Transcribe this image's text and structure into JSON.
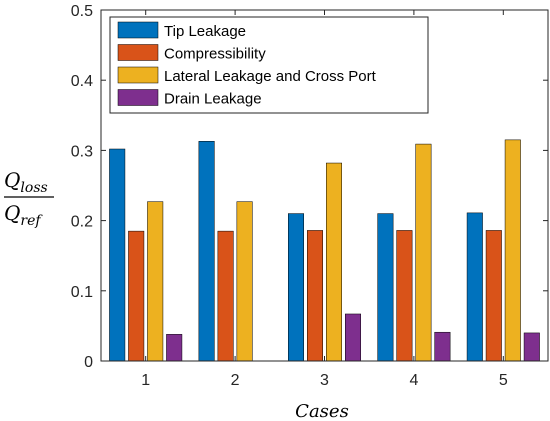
{
  "chart_data": {
    "type": "bar",
    "title": "",
    "xlabel": "Cases",
    "ylabel": {
      "numerator": "Q",
      "numerator_sub": "loss",
      "denominator": "Q",
      "denominator_sub": "ref"
    },
    "categories": [
      "1",
      "2",
      "3",
      "4",
      "5"
    ],
    "ylim": [
      0,
      0.5
    ],
    "yticks": [
      "0",
      "0.1",
      "0.2",
      "0.3",
      "0.4",
      "0.5"
    ],
    "grid": false,
    "legend_position": "top-left",
    "series": [
      {
        "name": "Tip Leakage",
        "color": "#0072BD",
        "values": [
          0.302,
          0.313,
          0.21,
          0.21,
          0.211
        ]
      },
      {
        "name": "Compressibility",
        "color": "#D95319",
        "values": [
          0.185,
          0.185,
          0.186,
          0.186,
          0.186
        ]
      },
      {
        "name": "Lateral Leakage and Cross Port",
        "color": "#EDB120",
        "values": [
          0.227,
          0.227,
          0.282,
          0.309,
          0.315
        ]
      },
      {
        "name": "Drain Leakage",
        "color": "#7E2F8E",
        "values": [
          0.038,
          0.0,
          0.067,
          0.041,
          0.04
        ]
      }
    ]
  }
}
